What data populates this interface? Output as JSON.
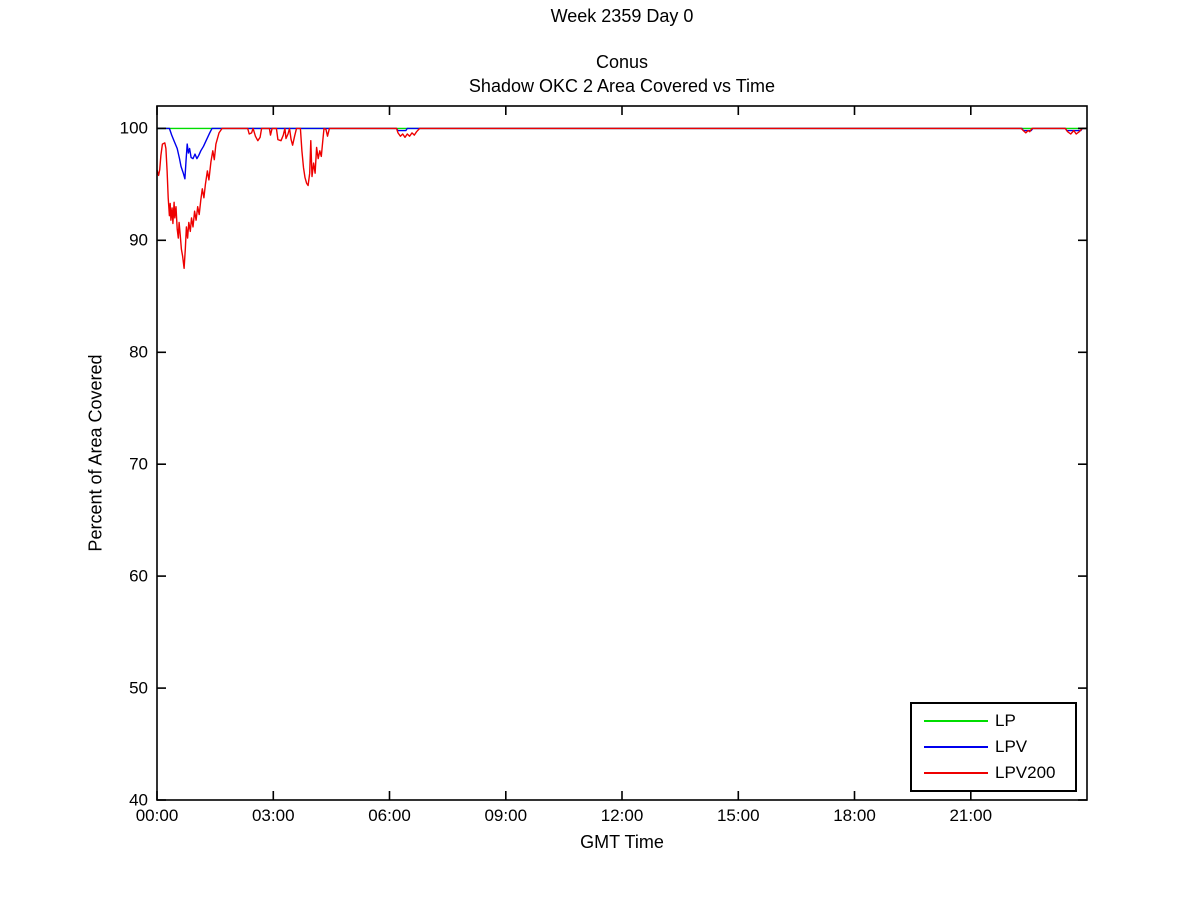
{
  "chart_data": {
    "type": "line",
    "suptitle": "Week 2359 Day 0",
    "title_line1": "Conus",
    "title_line2": "Shadow OKC 2 Area Covered vs Time",
    "xlabel": "GMT Time",
    "ylabel": "Percent of Area Covered",
    "xlim_hours": [
      0,
      24
    ],
    "ylim": [
      40,
      102
    ],
    "grid": false,
    "background_color": "#ffffff",
    "axis_color": "#000000",
    "legend_position": "bottom-right",
    "x_ticks": {
      "hours": [
        0,
        3,
        6,
        9,
        12,
        15,
        18,
        21
      ],
      "labels": [
        "00:00",
        "03:00",
        "06:00",
        "09:00",
        "12:00",
        "15:00",
        "18:00",
        "21:00"
      ]
    },
    "y_ticks": {
      "values": [
        40,
        50,
        60,
        70,
        80,
        90,
        100
      ],
      "labels": [
        "40",
        "50",
        "60",
        "70",
        "80",
        "90",
        "100"
      ]
    },
    "series": [
      {
        "name": "LP",
        "color": "#00dd00",
        "points": [
          [
            0,
            100
          ],
          [
            24,
            100
          ]
        ]
      },
      {
        "name": "LPV",
        "color": "#0000ee",
        "points": [
          [
            0,
            100
          ],
          [
            0.32,
            100
          ],
          [
            0.38,
            99.4
          ],
          [
            0.45,
            98.8
          ],
          [
            0.52,
            98.2
          ],
          [
            0.58,
            97.3
          ],
          [
            0.62,
            96.6
          ],
          [
            0.68,
            96.0
          ],
          [
            0.72,
            95.5
          ],
          [
            0.75,
            97.2
          ],
          [
            0.78,
            98.6
          ],
          [
            0.81,
            97.8
          ],
          [
            0.84,
            98.2
          ],
          [
            0.88,
            97.4
          ],
          [
            0.93,
            97.3
          ],
          [
            0.98,
            97.7
          ],
          [
            1.03,
            97.3
          ],
          [
            1.08,
            97.6
          ],
          [
            1.13,
            98.0
          ],
          [
            1.2,
            98.4
          ],
          [
            1.28,
            99.0
          ],
          [
            1.36,
            99.6
          ],
          [
            1.42,
            100
          ],
          [
            6.18,
            100
          ],
          [
            6.22,
            99.8
          ],
          [
            6.42,
            99.8
          ],
          [
            6.46,
            100
          ],
          [
            22.32,
            100
          ],
          [
            22.36,
            99.8
          ],
          [
            22.56,
            99.8
          ],
          [
            22.6,
            100
          ],
          [
            23.44,
            100
          ],
          [
            23.48,
            99.8
          ],
          [
            23.84,
            99.8
          ],
          [
            23.88,
            100
          ],
          [
            24,
            100
          ]
        ]
      },
      {
        "name": "LPV200",
        "color": "#ee0000",
        "points": [
          [
            0,
            96.3
          ],
          [
            0.04,
            95.8
          ],
          [
            0.07,
            96.3
          ],
          [
            0.1,
            97.6
          ],
          [
            0.14,
            98.6
          ],
          [
            0.2,
            98.7
          ],
          [
            0.23,
            98.2
          ],
          [
            0.26,
            96.2
          ],
          [
            0.29,
            93.8
          ],
          [
            0.32,
            92.2
          ],
          [
            0.34,
            93.3
          ],
          [
            0.36,
            91.8
          ],
          [
            0.39,
            92.9
          ],
          [
            0.41,
            91.5
          ],
          [
            0.44,
            93.4
          ],
          [
            0.46,
            92.0
          ],
          [
            0.49,
            93.0
          ],
          [
            0.52,
            91.0
          ],
          [
            0.55,
            90.2
          ],
          [
            0.57,
            91.6
          ],
          [
            0.6,
            90.4
          ],
          [
            0.63,
            89.2
          ],
          [
            0.66,
            88.6
          ],
          [
            0.7,
            87.5
          ],
          [
            0.73,
            89.2
          ],
          [
            0.76,
            91.2
          ],
          [
            0.79,
            90.2
          ],
          [
            0.82,
            91.6
          ],
          [
            0.86,
            90.8
          ],
          [
            0.89,
            92.0
          ],
          [
            0.93,
            91.2
          ],
          [
            0.97,
            92.6
          ],
          [
            1.01,
            91.8
          ],
          [
            1.05,
            93.0
          ],
          [
            1.09,
            92.3
          ],
          [
            1.13,
            93.6
          ],
          [
            1.17,
            94.6
          ],
          [
            1.21,
            93.8
          ],
          [
            1.25,
            95.0
          ],
          [
            1.3,
            96.2
          ],
          [
            1.34,
            95.4
          ],
          [
            1.39,
            97.0
          ],
          [
            1.44,
            98.0
          ],
          [
            1.48,
            97.2
          ],
          [
            1.52,
            98.6
          ],
          [
            1.6,
            99.6
          ],
          [
            1.68,
            100
          ],
          [
            2.34,
            100
          ],
          [
            2.38,
            99.5
          ],
          [
            2.44,
            99.6
          ],
          [
            2.48,
            100
          ],
          [
            2.54,
            99.3
          ],
          [
            2.6,
            98.9
          ],
          [
            2.66,
            99.2
          ],
          [
            2.7,
            100
          ],
          [
            2.9,
            100
          ],
          [
            2.93,
            99.4
          ],
          [
            2.97,
            100
          ],
          [
            3.08,
            100
          ],
          [
            3.12,
            99.0
          ],
          [
            3.2,
            98.9
          ],
          [
            3.26,
            99.4
          ],
          [
            3.3,
            100
          ],
          [
            3.33,
            99.1
          ],
          [
            3.38,
            99.5
          ],
          [
            3.42,
            100
          ],
          [
            3.46,
            99.0
          ],
          [
            3.5,
            98.5
          ],
          [
            3.55,
            99.3
          ],
          [
            3.6,
            100
          ],
          [
            3.7,
            100
          ],
          [
            3.74,
            98.0
          ],
          [
            3.78,
            96.5
          ],
          [
            3.82,
            95.6
          ],
          [
            3.86,
            95.1
          ],
          [
            3.9,
            94.9
          ],
          [
            3.94,
            96.0
          ],
          [
            3.97,
            98.9
          ],
          [
            4.0,
            95.7
          ],
          [
            4.04,
            96.9
          ],
          [
            4.08,
            96.0
          ],
          [
            4.12,
            98.3
          ],
          [
            4.16,
            97.3
          ],
          [
            4.2,
            98.0
          ],
          [
            4.24,
            97.5
          ],
          [
            4.28,
            99.0
          ],
          [
            4.31,
            100
          ],
          [
            4.36,
            99.9
          ],
          [
            4.4,
            99.3
          ],
          [
            4.45,
            100
          ],
          [
            6.18,
            100
          ],
          [
            6.22,
            99.6
          ],
          [
            6.28,
            99.3
          ],
          [
            6.34,
            99.5
          ],
          [
            6.4,
            99.2
          ],
          [
            6.46,
            99.5
          ],
          [
            6.52,
            99.3
          ],
          [
            6.58,
            99.6
          ],
          [
            6.64,
            99.4
          ],
          [
            6.7,
            99.7
          ],
          [
            6.78,
            100
          ],
          [
            22.3,
            100
          ],
          [
            22.36,
            99.8
          ],
          [
            22.42,
            99.6
          ],
          [
            22.48,
            99.8
          ],
          [
            22.52,
            99.7
          ],
          [
            22.58,
            100
          ],
          [
            23.44,
            100
          ],
          [
            23.5,
            99.7
          ],
          [
            23.58,
            99.5
          ],
          [
            23.66,
            99.8
          ],
          [
            23.72,
            99.5
          ],
          [
            23.8,
            99.7
          ],
          [
            23.88,
            100
          ],
          [
            24,
            100
          ]
        ]
      }
    ]
  }
}
